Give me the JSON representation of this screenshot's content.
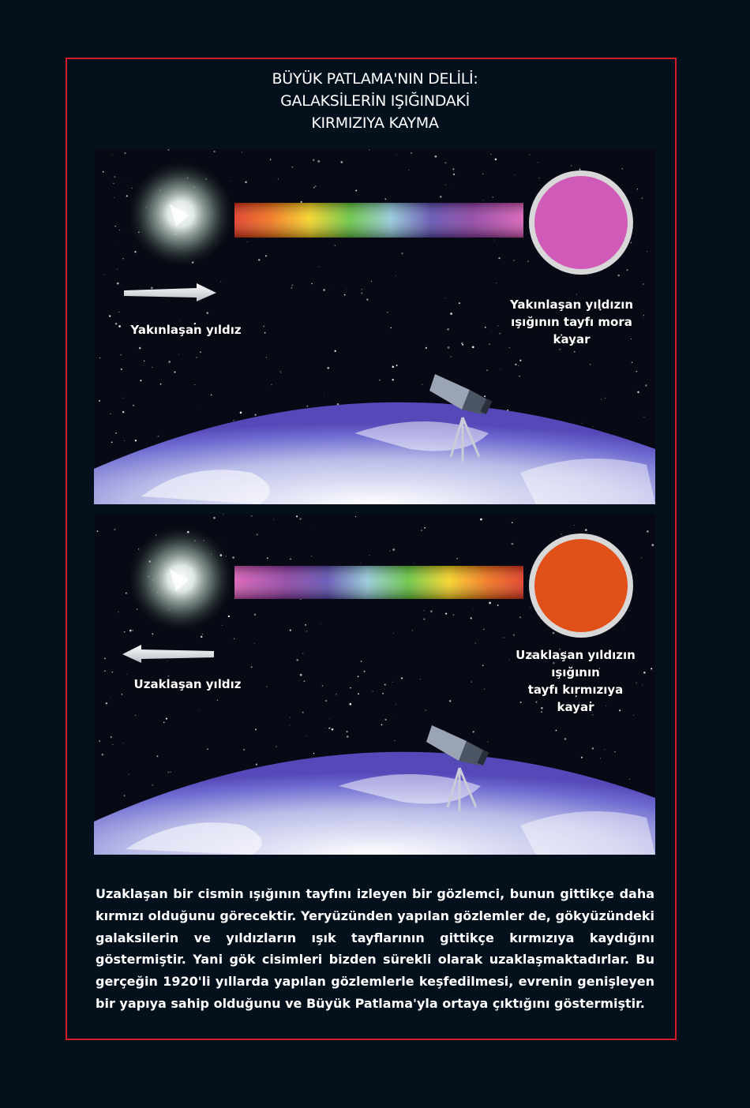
{
  "title": {
    "line1": "BÜYÜK PATLAMA'NIN DELİLİ:",
    "line2": "GALAKSİLERİN IŞIĞINDAKİ",
    "line3": "KIRMIZIYA KAYMA"
  },
  "panel_top": {
    "star_label": "Yakınlaşan yıldız",
    "spectrum_label_lines": [
      "Yakınlaşan yıldızın",
      "ışığının tayfı mora",
      "kayar"
    ],
    "arrow_direction": "right",
    "disc_color": "#d05ab8"
  },
  "panel_bottom": {
    "star_label": "Uzaklaşan yıldız",
    "spectrum_label_lines": [
      "Uzaklaşan yıldızın",
      "ışığının",
      "tayfı kırmızıya",
      "kayar"
    ],
    "arrow_direction": "left",
    "disc_color": "#e2501a"
  },
  "caption": "Uzaklaşan bir cismin ışığının tayfını izleyen bir gözlemci, bunun gittikçe daha kırmızı olduğunu görecektir. Yeryüzünden yapılan gözlemler de, gökyüzündeki galaksilerin ve yıldızların ışık tayflarının gittikçe kırmızıya kaydığını göstermiştir. Yani gök cisimleri bizden sürekli olarak uzaklaşmaktadırlar. Bu gerçeğin 1920'li yıllarda yapılan gözlemlerle keşfedilmesi, evrenin genişleyen bir yapıya sahip olduğunu ve Büyük Patlama'yla ortaya çıktığını göstermiştir.",
  "colors": {
    "background": "#04101c",
    "frame": "#d21e28",
    "text": "#ffffff"
  },
  "icons": [
    "star-glow-icon",
    "arrow-right-icon",
    "arrow-left-icon",
    "telescope-icon",
    "earth-horizon"
  ]
}
